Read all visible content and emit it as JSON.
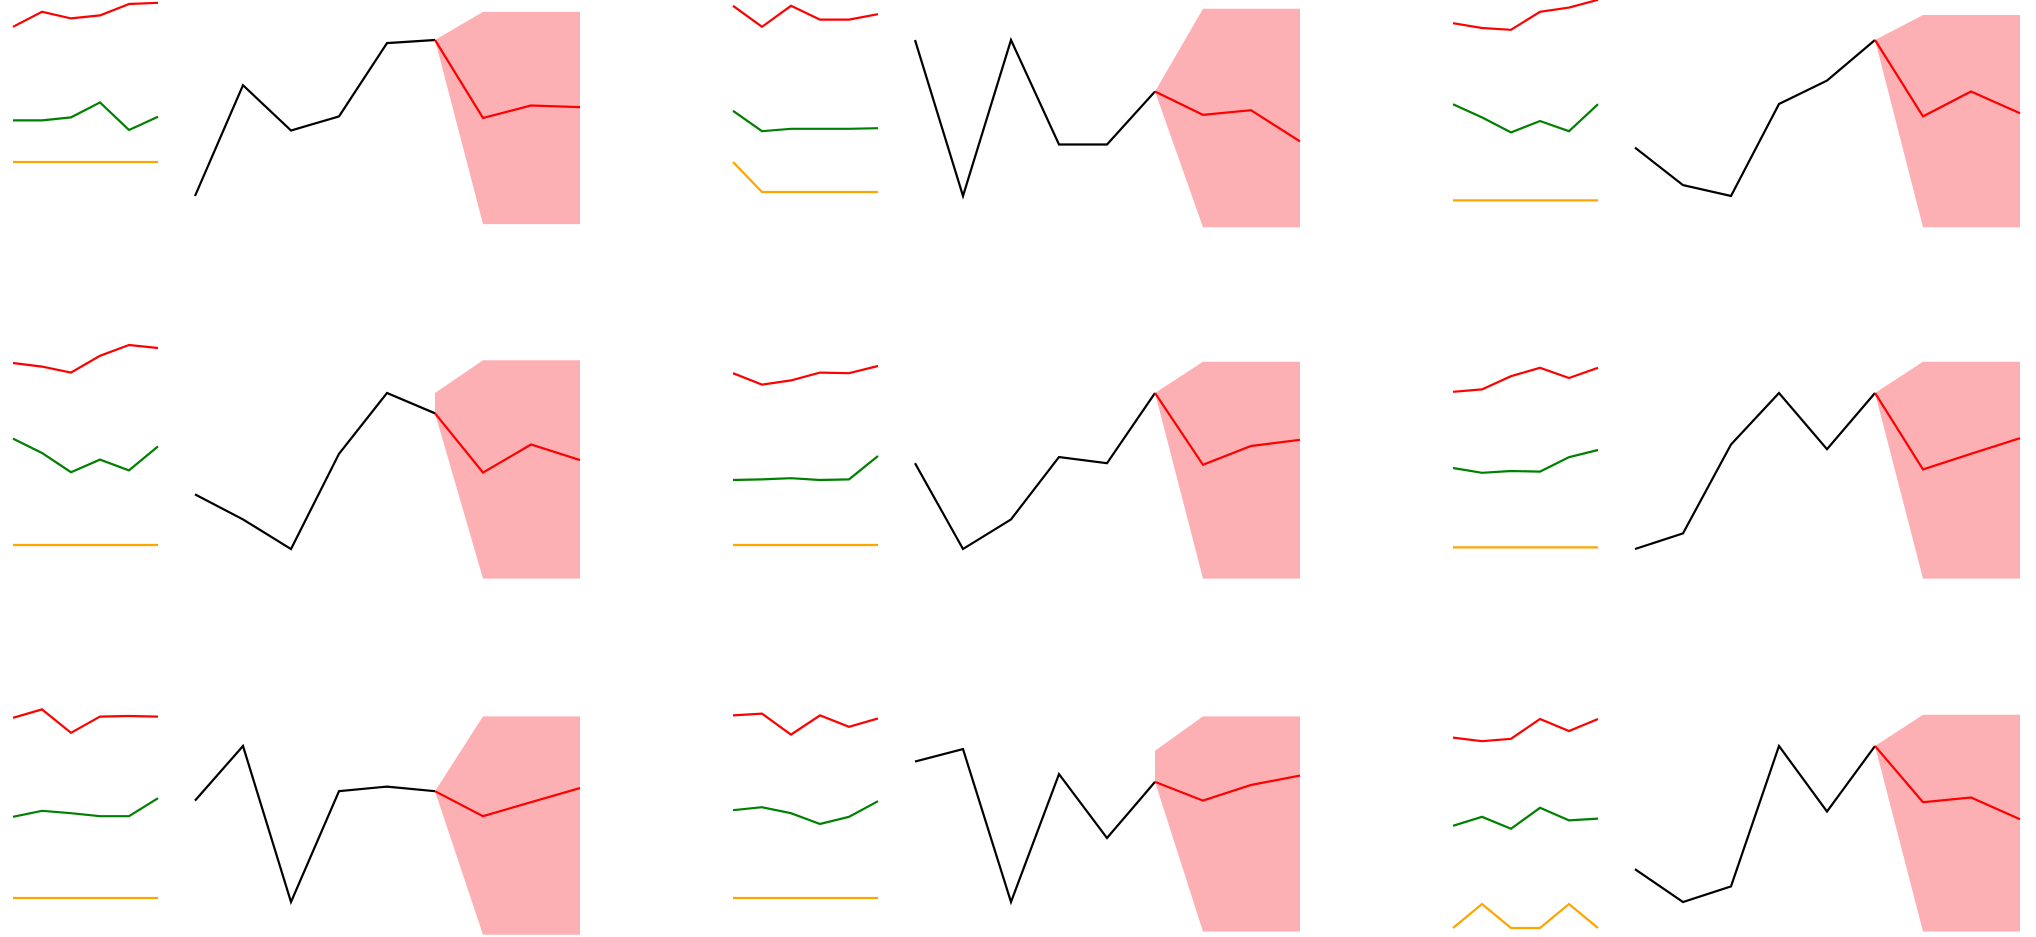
{
  "colors": {
    "signal_a": "#ff0000",
    "signal_b": "#008000",
    "signal_c": "#ffa500",
    "history": "#000000",
    "forecast": "#ff0000",
    "forecast_band": "#fdb0b4"
  },
  "chart_data": [
    {
      "type": "line",
      "panel": 1,
      "x_signals": [
        1,
        2,
        3,
        4,
        5,
        6
      ],
      "signals": [
        {
          "color": "red",
          "values": [
            0.72,
            0.97,
            0.86,
            0.91,
            1.1,
            1.12
          ]
        },
        {
          "color": "green",
          "values": [
            0.16,
            0.16,
            0.21,
            0.46,
            0.0,
            0.22
          ]
        },
        {
          "color": "orange",
          "values": [
            0.5,
            0.5,
            0.5,
            0.5,
            0.5,
            0.5
          ]
        }
      ],
      "history": {
        "x": [
          1,
          2,
          3,
          4,
          5,
          6
        ],
        "values": [
          0.0,
          0.71,
          0.42,
          0.51,
          0.98,
          1.0
        ]
      },
      "forecast": {
        "x": [
          6,
          7,
          8,
          9
        ],
        "values": [
          1.0,
          0.5,
          0.58,
          0.57
        ]
      },
      "band": {
        "x": [
          6,
          7,
          9
        ],
        "upper": [
          1.0,
          1.18,
          1.18
        ],
        "lower": [
          1.0,
          -0.18,
          -0.18
        ]
      }
    },
    {
      "type": "line",
      "panel": 2,
      "x_signals": [
        1,
        2,
        3,
        4,
        5,
        6
      ],
      "signals": [
        {
          "color": "red",
          "values": [
            1.07,
            0.72,
            1.07,
            0.84,
            0.84,
            0.93
          ]
        },
        {
          "color": "green",
          "values": [
            0.32,
            -0.02,
            0.02,
            0.02,
            0.02,
            0.03
          ]
        },
        {
          "color": "orange",
          "values": [
            0.5,
            0.0,
            0.0,
            0.0,
            0.0,
            0.0
          ]
        }
      ],
      "history": {
        "x": [
          1,
          2,
          3,
          4,
          5,
          6
        ],
        "values": [
          1.0,
          0.0,
          1.0,
          0.33,
          0.33,
          0.67
        ]
      },
      "forecast": {
        "x": [
          6,
          7,
          8,
          9
        ],
        "values": [
          0.67,
          0.52,
          0.55,
          0.35
        ]
      },
      "band": {
        "x": [
          6,
          7,
          9
        ],
        "upper": [
          0.67,
          1.2,
          1.2
        ],
        "lower": [
          0.67,
          -0.2,
          -0.2
        ]
      }
    },
    {
      "type": "line",
      "panel": 3,
      "x_signals": [
        1,
        2,
        3,
        4,
        5,
        6
      ],
      "signals": [
        {
          "color": "red",
          "values": [
            0.78,
            0.7,
            0.67,
            0.97,
            1.04,
            1.17
          ]
        },
        {
          "color": "green",
          "values": [
            0.43,
            0.21,
            -0.04,
            0.15,
            -0.02,
            0.43
          ]
        },
        {
          "color": "orange",
          "values": [
            -0.14,
            -0.14,
            -0.14,
            -0.14,
            -0.14,
            -0.14
          ]
        }
      ],
      "history": {
        "x": [
          1,
          2,
          3,
          4,
          5,
          6
        ],
        "values": [
          0.31,
          0.07,
          0.0,
          0.59,
          0.74,
          1.0
        ]
      },
      "forecast": {
        "x": [
          6,
          7,
          8,
          9
        ],
        "values": [
          1.0,
          0.51,
          0.67,
          0.53
        ]
      },
      "band": {
        "x": [
          6,
          7,
          9
        ],
        "upper": [
          1.0,
          1.16,
          1.16
        ],
        "lower": [
          1.0,
          -0.2,
          -0.2
        ]
      }
    },
    {
      "type": "line",
      "panel": 4,
      "x_signals": [
        1,
        2,
        3,
        4,
        5,
        6
      ],
      "signals": [
        {
          "color": "red",
          "values": [
            1.0,
            0.94,
            0.84,
            1.12,
            1.3,
            1.25
          ]
        },
        {
          "color": "green",
          "values": [
            0.74,
            0.5,
            0.18,
            0.39,
            0.21,
            0.61
          ]
        },
        {
          "color": "orange",
          "values": [
            0.0,
            0.0,
            0.0,
            0.0,
            0.0,
            0.0
          ]
        }
      ],
      "history": {
        "x": [
          1,
          2,
          3,
          4,
          5,
          6
        ],
        "values": [
          0.35,
          0.19,
          0.0,
          0.61,
          1.0,
          0.87
        ]
      },
      "forecast": {
        "x": [
          6,
          7,
          8,
          9
        ],
        "values": [
          0.87,
          0.49,
          0.67,
          0.57
        ]
      },
      "band": {
        "x": [
          6,
          7,
          9
        ],
        "upper": [
          1.0,
          1.21,
          1.21
        ],
        "lower": [
          0.87,
          -0.19,
          -0.19
        ]
      }
    },
    {
      "type": "line",
      "panel": 5,
      "x_signals": [
        1,
        2,
        3,
        4,
        5,
        6
      ],
      "signals": [
        {
          "color": "red",
          "values": [
            0.83,
            0.64,
            0.71,
            0.84,
            0.83,
            0.95
          ]
        },
        {
          "color": "green",
          "values": [
            0.05,
            0.06,
            0.08,
            0.05,
            0.06,
            0.45
          ]
        },
        {
          "color": "orange",
          "values": [
            0.0,
            0.0,
            0.0,
            0.0,
            0.0,
            0.0
          ]
        }
      ],
      "history": {
        "x": [
          1,
          2,
          3,
          4,
          5,
          6
        ],
        "values": [
          0.55,
          0.0,
          0.19,
          0.59,
          0.55,
          1.0
        ]
      },
      "forecast": {
        "x": [
          6,
          7,
          8,
          9
        ],
        "values": [
          1.0,
          0.54,
          0.66,
          0.7
        ]
      },
      "band": {
        "x": [
          6,
          7,
          9
        ],
        "upper": [
          1.0,
          1.2,
          1.2
        ],
        "lower": [
          1.0,
          -0.19,
          -0.19
        ]
      }
    },
    {
      "type": "line",
      "panel": 6,
      "x_signals": [
        1,
        2,
        3,
        4,
        5,
        6
      ],
      "signals": [
        {
          "color": "red",
          "values": [
            0.52,
            0.56,
            0.78,
            0.92,
            0.75,
            0.92
          ]
        },
        {
          "color": "green",
          "values": [
            0.25,
            0.17,
            0.2,
            0.19,
            0.43,
            0.55
          ]
        },
        {
          "color": "orange",
          "values": [
            -0.04,
            -0.04,
            -0.04,
            -0.04,
            -0.04,
            -0.04
          ]
        }
      ],
      "history": {
        "x": [
          1,
          2,
          3,
          4,
          5,
          6
        ],
        "values": [
          0.0,
          0.1,
          0.67,
          1.0,
          0.64,
          1.0
        ]
      },
      "forecast": {
        "x": [
          6,
          7,
          8,
          9
        ],
        "values": [
          1.0,
          0.51,
          0.61,
          0.71
        ]
      },
      "band": {
        "x": [
          6,
          7,
          9
        ],
        "upper": [
          1.0,
          1.2,
          1.2
        ],
        "lower": [
          1.0,
          -0.19,
          -0.19
        ]
      }
    },
    {
      "type": "line",
      "panel": 7,
      "x_signals": [
        1,
        2,
        3,
        4,
        5,
        6
      ],
      "signals": [
        {
          "color": "red",
          "values": [
            0.97,
            1.11,
            0.72,
            0.99,
            1.0,
            0.99
          ]
        },
        {
          "color": "green",
          "values": [
            0.32,
            0.42,
            0.38,
            0.33,
            0.33,
            0.63
          ]
        },
        {
          "color": "orange",
          "values": [
            0.0,
            0.0,
            0.0,
            0.0,
            0.0,
            0.0
          ]
        }
      ],
      "history": {
        "x": [
          1,
          2,
          3,
          4,
          5,
          6
        ],
        "values": [
          0.65,
          1.0,
          0.0,
          0.71,
          0.74,
          0.71
        ]
      },
      "forecast": {
        "x": [
          6,
          7,
          8,
          9
        ],
        "values": [
          0.71,
          0.55,
          0.64,
          0.73
        ]
      },
      "band": {
        "x": [
          6,
          7,
          9
        ],
        "upper": [
          0.71,
          1.19,
          1.19
        ],
        "lower": [
          0.71,
          -0.21,
          -0.21
        ]
      }
    },
    {
      "type": "line",
      "panel": 8,
      "x_signals": [
        1,
        2,
        3,
        4,
        5,
        6
      ],
      "signals": [
        {
          "color": "red",
          "values": [
            1.01,
            1.04,
            0.69,
            1.01,
            0.82,
            0.96
          ]
        },
        {
          "color": "green",
          "values": [
            0.43,
            0.48,
            0.38,
            0.2,
            0.32,
            0.58
          ]
        },
        {
          "color": "orange",
          "values": [
            0.0,
            0.0,
            0.0,
            0.0,
            0.0,
            0.0
          ]
        }
      ],
      "history": {
        "x": [
          1,
          2,
          3,
          4,
          5,
          6
        ],
        "values": [
          0.9,
          0.98,
          0.0,
          0.82,
          0.41,
          0.77
        ]
      },
      "forecast": {
        "x": [
          6,
          7,
          8,
          9
        ],
        "values": [
          0.77,
          0.65,
          0.75,
          0.81
        ]
      },
      "band": {
        "x": [
          6,
          7,
          9
        ],
        "upper": [
          0.97,
          1.19,
          1.19
        ],
        "lower": [
          0.77,
          -0.19,
          -0.19
        ]
      }
    },
    {
      "type": "line",
      "panel": 9,
      "x_signals": [
        1,
        2,
        3,
        4,
        5,
        6
      ],
      "signals": [
        {
          "color": "red",
          "values": [
            0.64,
            0.58,
            0.62,
            0.95,
            0.75,
            0.95
          ]
        },
        {
          "color": "green",
          "values": [
            0.17,
            0.32,
            0.12,
            0.47,
            0.26,
            0.29
          ]
        },
        {
          "color": "orange",
          "values": [
            -0.5,
            -0.1,
            -0.5,
            -0.5,
            -0.1,
            -0.5
          ]
        }
      ],
      "history": {
        "x": [
          1,
          2,
          3,
          4,
          5,
          6
        ],
        "values": [
          0.21,
          0.0,
          0.1,
          1.0,
          0.58,
          1.0
        ]
      },
      "forecast": {
        "x": [
          6,
          7,
          8,
          9
        ],
        "values": [
          1.0,
          0.64,
          0.67,
          0.53
        ]
      },
      "band": {
        "x": [
          6,
          7,
          9
        ],
        "upper": [
          1.0,
          1.2,
          1.2
        ],
        "lower": [
          1.0,
          -0.19,
          -0.19
        ]
      }
    }
  ]
}
